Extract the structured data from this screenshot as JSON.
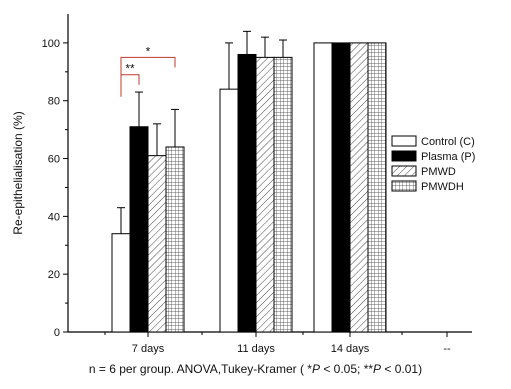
{
  "chart_data": {
    "type": "bar",
    "ylabel": "Re-epithelialisation (%)",
    "xlabel": "",
    "ylim": [
      0,
      110
    ],
    "yticks": [
      0,
      20,
      40,
      60,
      80,
      100
    ],
    "categories": [
      "7 days",
      "11 days",
      "14 days",
      "--"
    ],
    "legend_position": "right",
    "series": [
      {
        "name": "Control (C)",
        "values": [
          34,
          84,
          100,
          null
        ],
        "errors": [
          9,
          16,
          0,
          null
        ],
        "fill": "white"
      },
      {
        "name": "Plasma (P)",
        "values": [
          71,
          96,
          100,
          null
        ],
        "errors": [
          12,
          8,
          0,
          null
        ],
        "fill": "black"
      },
      {
        "name": "PMWD",
        "values": [
          61,
          95,
          100,
          null
        ],
        "errors": [
          11,
          7,
          0,
          null
        ],
        "fill": "hatch"
      },
      {
        "name": "PMWDH",
        "values": [
          64,
          95,
          100,
          null
        ],
        "errors": [
          13,
          6,
          0,
          null
        ],
        "fill": "grid"
      }
    ],
    "annotations": [
      {
        "label": "**",
        "from_series": 0,
        "to_series": 1,
        "category": 0,
        "y": 89
      },
      {
        "label": "*",
        "from_series": 0,
        "to_series": 3,
        "category": 0,
        "y": 95
      }
    ]
  },
  "caption": {
    "prefix": "n = 6 per group. ANOVA,Tukey-Kramer ( *",
    "p1": "P",
    "mid": " < 0.05; **",
    "p2": "P",
    "suffix": " < 0.01)"
  }
}
